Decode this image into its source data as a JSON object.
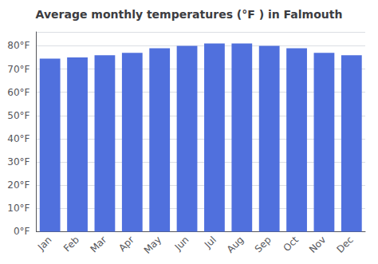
{
  "chart_data": {
    "type": "bar",
    "title": "Average monthly temperatures (°F ) in Falmouth",
    "categories": [
      "Jan",
      "Feb",
      "Mar",
      "Apr",
      "May",
      "Jun",
      "Jul",
      "Aug",
      "Sep",
      "Oct",
      "Nov",
      "Dec"
    ],
    "values": [
      74.5,
      75.0,
      76.0,
      77.0,
      79.0,
      80.0,
      81.0,
      81.0,
      80.0,
      79.0,
      77.0,
      76.0
    ],
    "ylim": [
      0,
      86
    ],
    "yticks": [
      {
        "value": 0,
        "label": "0°F"
      },
      {
        "value": 10,
        "label": "10°F"
      },
      {
        "value": 20,
        "label": "20°F"
      },
      {
        "value": 30,
        "label": "30°F"
      },
      {
        "value": 40,
        "label": "40°F"
      },
      {
        "value": 50,
        "label": "50°F"
      },
      {
        "value": 60,
        "label": "60°F"
      },
      {
        "value": 70,
        "label": "70°F"
      },
      {
        "value": 80,
        "label": "80°F"
      }
    ],
    "grid": true
  }
}
